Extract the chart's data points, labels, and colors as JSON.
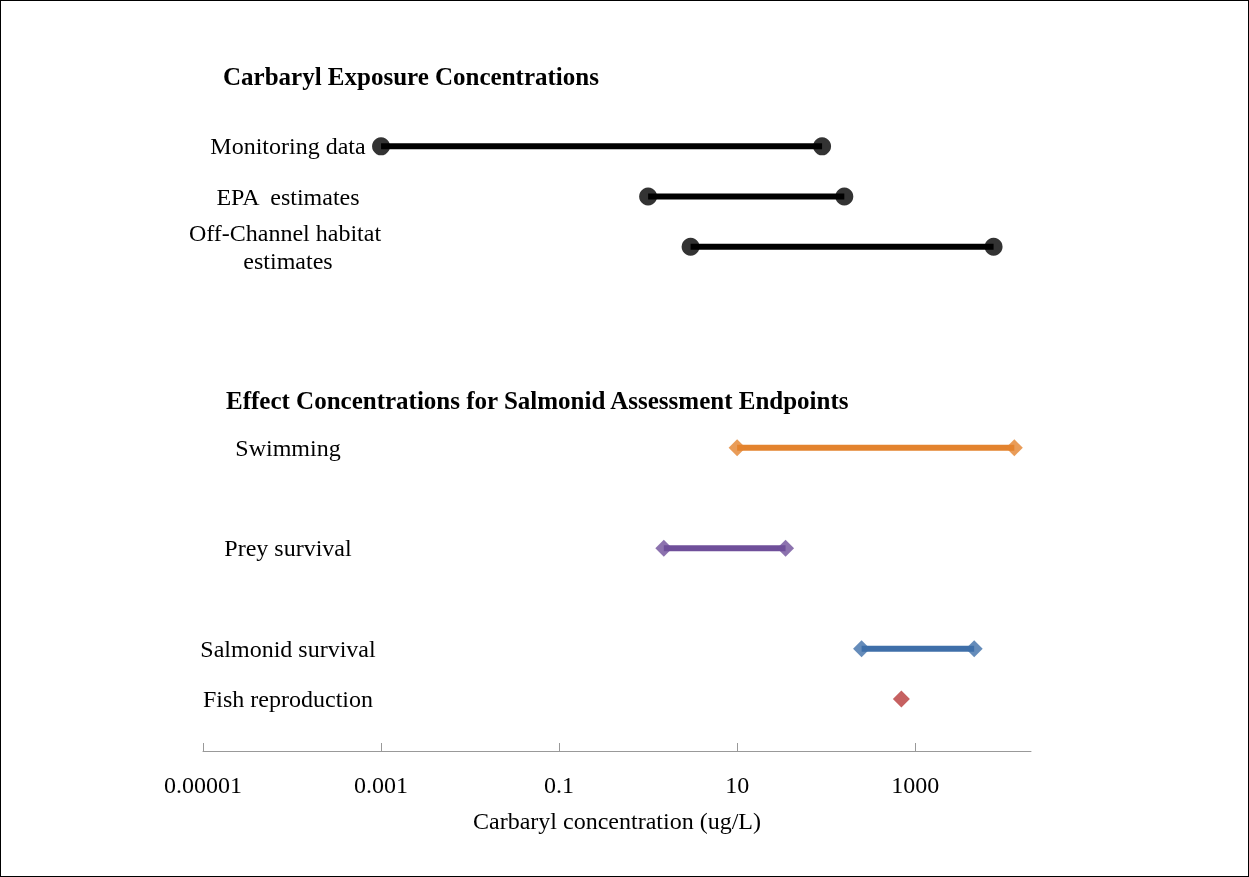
{
  "chart_data": {
    "type": "bar",
    "orientation": "horizontal",
    "log": "x",
    "xlabel": "Carbaryl concentration (ug/L)",
    "annotations": [
      "Carbaryl Exposure Concentrations",
      "Effect Concentrations for Salmonid Assessment Endpoints"
    ],
    "categories": [
      null,
      "Monitoring data",
      "EPA  estimates",
      "Off-Channel habitat estimates",
      null,
      null,
      null,
      "Swimming",
      null,
      "Prey survival",
      null,
      "Salmonid survival",
      "Fish reproduction"
    ],
    "xlim": [
      1e-05,
      20000
    ],
    "xticks": [
      {
        "value": 1e-05,
        "label": "0.00001"
      },
      0.001,
      0.1,
      10,
      1000
    ],
    "series": [
      {
        "color": "#000000",
        "base": [
          null,
          0.001,
          1,
          3,
          null,
          null,
          null,
          null,
          null,
          null,
          null,
          null,
          null
        ],
        "values": [
          null,
          89.999,
          159,
          7597,
          null,
          null,
          null,
          null,
          null,
          null,
          null,
          null,
          null
        ]
      },
      {
        "colors": [
          null,
          null,
          null,
          null,
          null,
          null,
          null,
          "#e3832e",
          null,
          "#6f4f9a",
          null,
          "#3f6fa9",
          null
        ],
        "base": [
          null,
          null,
          null,
          null,
          null,
          null,
          null,
          10,
          null,
          1.5,
          null,
          250,
          null
        ],
        "values": [
          null,
          null,
          null,
          null,
          null,
          null,
          null,
          12990,
          null,
          33.5,
          null,
          4350,
          null
        ]
      },
      {
        "type": "scatter",
        "marker": "circle",
        "color": "#000000",
        "values": [
          null,
          0.001,
          1,
          3,
          null,
          null,
          null,
          null,
          null,
          null,
          null,
          null,
          null
        ]
      },
      {
        "type": "scatter",
        "marker": "circle",
        "color": "#000000",
        "values": [
          null,
          90,
          160,
          7600,
          null,
          null,
          null,
          null,
          null,
          null,
          null,
          null,
          null
        ]
      },
      {
        "type": "scatter",
        "marker": "diamond",
        "colors": [
          null,
          null,
          null,
          null,
          null,
          null,
          null,
          "#e3832e",
          null,
          "#6f4f9a",
          null,
          "#3f6fa9",
          "#b83a3a"
        ],
        "values": [
          null,
          null,
          null,
          null,
          null,
          null,
          null,
          10,
          null,
          1.5,
          null,
          250,
          700
        ]
      },
      {
        "type": "scatter",
        "marker": "diamond",
        "colors": [
          null,
          null,
          null,
          null,
          null,
          null,
          null,
          "#e3832e",
          null,
          "#6f4f9a",
          null,
          "#3f6fa9",
          null
        ],
        "values": [
          null,
          null,
          null,
          null,
          null,
          null,
          null,
          13000,
          null,
          35,
          null,
          4600,
          null
        ]
      }
    ]
  }
}
